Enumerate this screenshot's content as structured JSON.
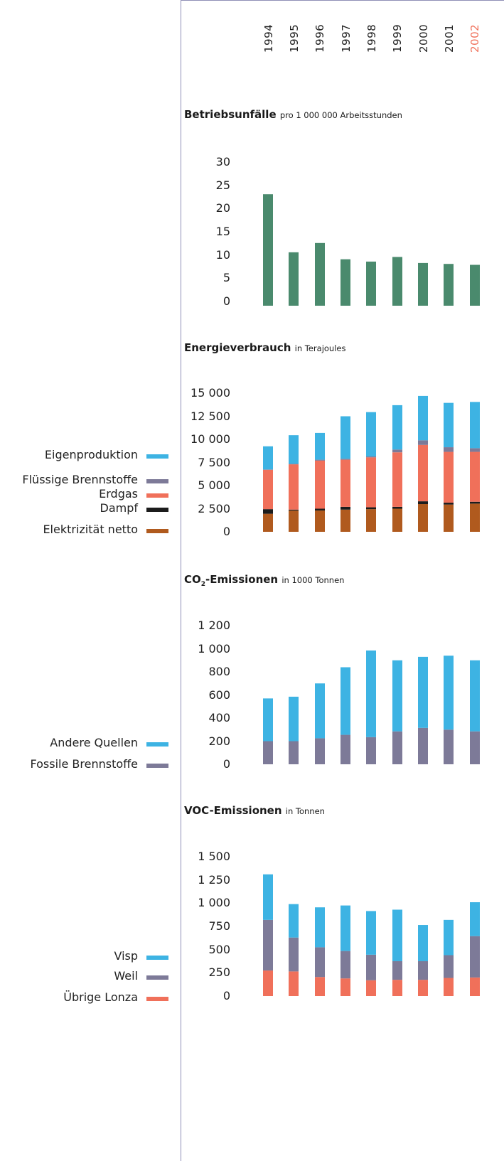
{
  "years": [
    "1994",
    "1995",
    "1996",
    "1997",
    "1998",
    "1999",
    "2000",
    "2001",
    "2002"
  ],
  "current_year": "2002",
  "colors": {
    "accident": "#4a8a6d",
    "eigenproduktion": "#3db3e3",
    "fluessig": "#7d7a98",
    "erdgas": "#f0705a",
    "dampf": "#1c1c1c",
    "elektrizitaet": "#b05a1e",
    "axis": "#8f8fb6"
  },
  "chart_data": [
    {
      "type": "bar",
      "title": "Betriebsunfälle",
      "subtitle": "pro 1 000 000 Arbeitsstunden",
      "categories": [
        "1994",
        "1995",
        "1996",
        "1997",
        "1998",
        "1999",
        "2000",
        "2001",
        "2002"
      ],
      "ylim": [
        0,
        30
      ],
      "yticks": [
        "30",
        "25",
        "20",
        "15",
        "10",
        "5",
        "0"
      ],
      "series": [
        {
          "key": "accident",
          "values": [
            24,
            11.5,
            13.5,
            10,
            9.5,
            10.5,
            9.2,
            9,
            8.8
          ]
        }
      ]
    },
    {
      "type": "bar",
      "stacked": true,
      "title": "Energieverbrauch",
      "subtitle": "in Terajoules",
      "categories": [
        "1994",
        "1995",
        "1996",
        "1997",
        "1998",
        "1999",
        "2000",
        "2001",
        "2002"
      ],
      "ylim": [
        0,
        15000
      ],
      "yticks": [
        "15 000",
        "12 500",
        "10 000",
        "7 500",
        "5 000",
        "2 500",
        "0"
      ],
      "series": [
        {
          "name": "Elektrizität netto",
          "key": "elektrizitaet",
          "values": [
            1950,
            2300,
            2300,
            2400,
            2450,
            2500,
            3000,
            2950,
            3050
          ]
        },
        {
          "name": "Dampf",
          "key": "dampf",
          "values": [
            500,
            100,
            200,
            300,
            200,
            200,
            300,
            200,
            200
          ]
        },
        {
          "name": "Erdgas",
          "key": "erdgas",
          "values": [
            4250,
            4900,
            5200,
            5100,
            5400,
            5900,
            6100,
            5500,
            5400
          ]
        },
        {
          "name": "Flüssige Brennstoffe",
          "key": "fluessig",
          "values": [
            50,
            50,
            100,
            100,
            100,
            300,
            500,
            500,
            400
          ]
        },
        {
          "name": "Eigenproduktion",
          "key": "eigenproduktion",
          "values": [
            2500,
            3100,
            2900,
            4600,
            4800,
            4800,
            4800,
            4800,
            5000
          ]
        }
      ]
    },
    {
      "type": "bar",
      "stacked": true,
      "title": "CO2-Emissionen",
      "title_main": "CO",
      "title_subscript": "2",
      "title_rest": "-Emissionen",
      "subtitle": "in 1000 Tonnen",
      "categories": [
        "1994",
        "1995",
        "1996",
        "1997",
        "1998",
        "1999",
        "2000",
        "2001",
        "2002"
      ],
      "ylim": [
        0,
        1200
      ],
      "yticks": [
        "1 200",
        "1 000",
        "800",
        "600",
        "400",
        "200",
        "0"
      ],
      "series": [
        {
          "name": "Fossile Brennstoffe",
          "key": "fluessig",
          "values": [
            200,
            200,
            225,
            255,
            235,
            285,
            315,
            300,
            285
          ]
        },
        {
          "name": "Andere Quellen",
          "key": "eigenproduktion",
          "values": [
            370,
            385,
            475,
            585,
            750,
            615,
            615,
            640,
            615
          ]
        }
      ]
    },
    {
      "type": "bar",
      "stacked": true,
      "title": "VOC-Emissionen",
      "subtitle": "in Tonnen",
      "categories": [
        "1994",
        "1995",
        "1996",
        "1997",
        "1998",
        "1999",
        "2000",
        "2001",
        "2002"
      ],
      "ylim": [
        0,
        1500
      ],
      "yticks": [
        "1 500",
        "1 250",
        "1 000",
        "750",
        "500",
        "250",
        "0"
      ],
      "series": [
        {
          "name": "Übrige Lonza",
          "key": "erdgas",
          "values": [
            275,
            265,
            205,
            190,
            170,
            175,
            175,
            195,
            200
          ]
        },
        {
          "name": "Weil",
          "key": "fluessig",
          "values": [
            545,
            365,
            320,
            295,
            275,
            200,
            200,
            245,
            445
          ]
        },
        {
          "name": "Visp",
          "key": "eigenproduktion",
          "values": [
            490,
            360,
            430,
            490,
            470,
            555,
            390,
            380,
            365
          ]
        }
      ]
    }
  ],
  "legends": [
    [],
    [
      {
        "label": "Eigenproduktion",
        "key": "eigenproduktion"
      },
      {
        "label": "Flüssige Brennstoffe",
        "key": "fluessig"
      },
      {
        "label": "Erdgas",
        "key": "erdgas"
      },
      {
        "label": "Dampf",
        "key": "dampf"
      },
      {
        "label": "Elektrizität netto",
        "key": "elektrizitaet"
      }
    ],
    [
      {
        "label": "Andere Quellen",
        "key": "eigenproduktion"
      },
      {
        "label": "Fossile Brennstoffe",
        "key": "fluessig"
      }
    ],
    [
      {
        "label": "Visp",
        "key": "eigenproduktion"
      },
      {
        "label": "Weil",
        "key": "fluessig"
      },
      {
        "label": "Übrige Lonza",
        "key": "erdgas"
      }
    ]
  ]
}
